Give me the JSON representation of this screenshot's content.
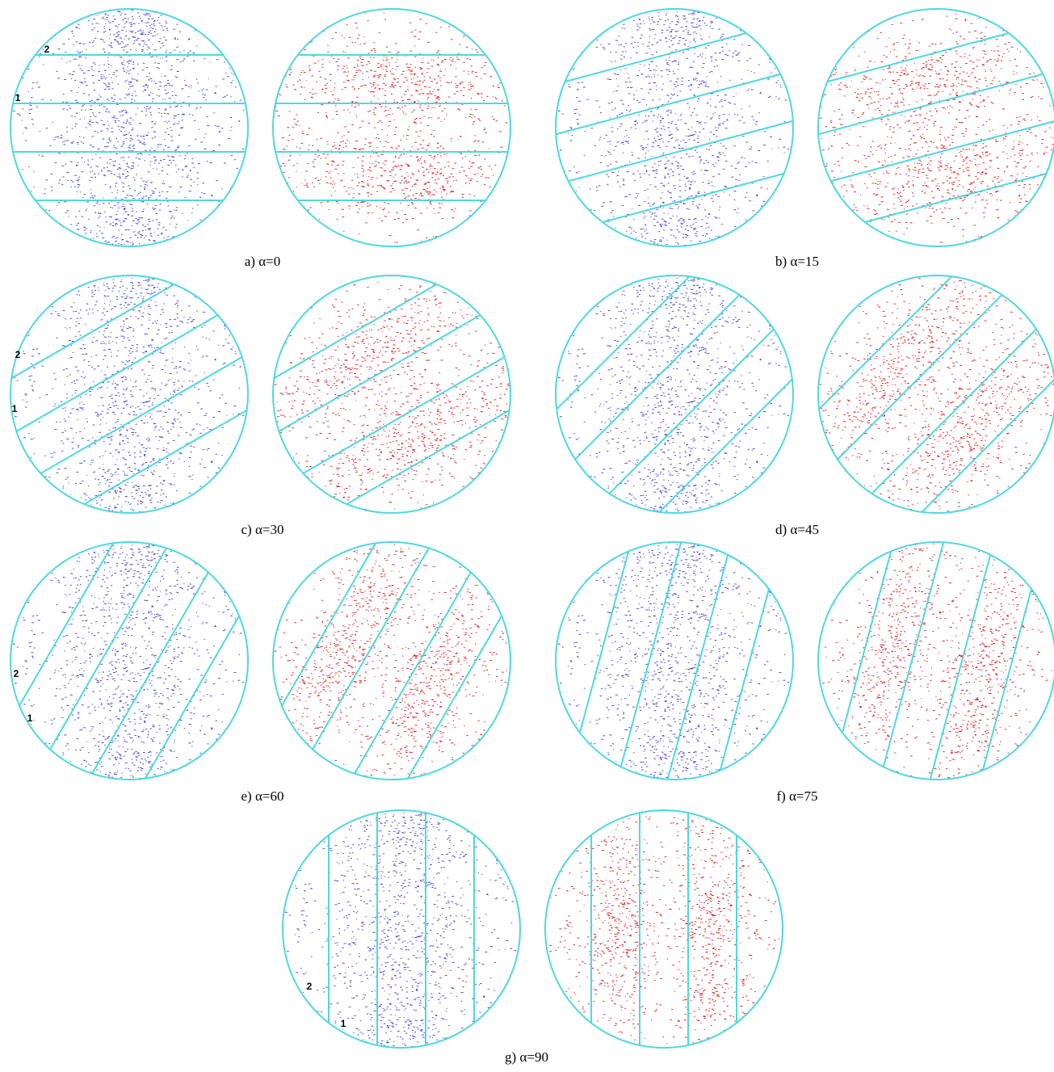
{
  "panels": [
    {
      "caption": "a) α=0",
      "labels": [
        "2",
        "1"
      ]
    },
    {
      "caption": "b) α=15"
    },
    {
      "caption": "c) α=30",
      "labels": [
        "2",
        "1"
      ]
    },
    {
      "caption": "d) α=45"
    },
    {
      "caption": "e) α=60",
      "labels": [
        "2",
        "1"
      ]
    },
    {
      "caption": "f) α=75"
    },
    {
      "caption": "g) α=90",
      "labels": [
        "2",
        "1"
      ]
    }
  ]
}
